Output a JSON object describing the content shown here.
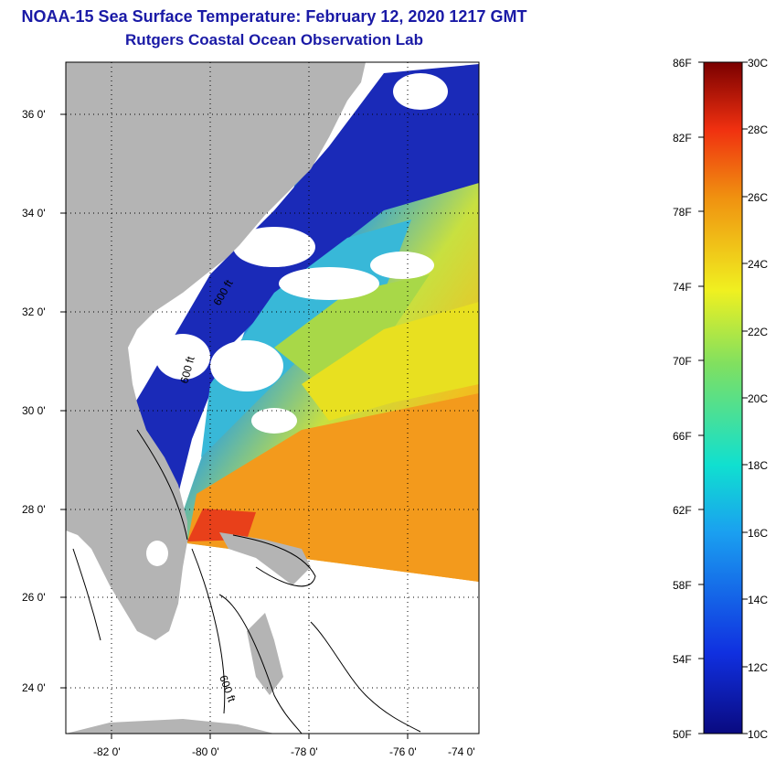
{
  "title": {
    "line1": "NOAA-15 Sea Surface Temperature:  February 12, 2020 1217 GMT",
    "line2": "Rutgers Coastal Ocean Observation Lab"
  },
  "map": {
    "lon_ticks": [
      "-82 0'",
      "-80 0'",
      "-78 0'",
      "-76 0'",
      "-74 0'"
    ],
    "lat_ticks": [
      "36 0'",
      "34 0'",
      "32 0'",
      "30 0'",
      "28 0'",
      "26 0'",
      "24 0'"
    ],
    "contour_labels": [
      "600 ft",
      "600 ft",
      "600 ft"
    ],
    "colors": {
      "land": "#b4b4b4",
      "cloud": "#ffffff",
      "cold": "#1a2ab8",
      "warm": "#f08a1a",
      "hot": "#e83a10"
    }
  },
  "colorbar": {
    "fahrenheit_labels": [
      "86F",
      "82F",
      "78F",
      "74F",
      "70F",
      "66F",
      "62F",
      "58F",
      "54F",
      "50F"
    ],
    "celsius_labels": [
      "30C",
      "28C",
      "26C",
      "24C",
      "22C",
      "20C",
      "18C",
      "16C",
      "14C",
      "12C",
      "10C"
    ],
    "range_c": [
      10,
      30
    ],
    "range_f": [
      50,
      86
    ]
  }
}
